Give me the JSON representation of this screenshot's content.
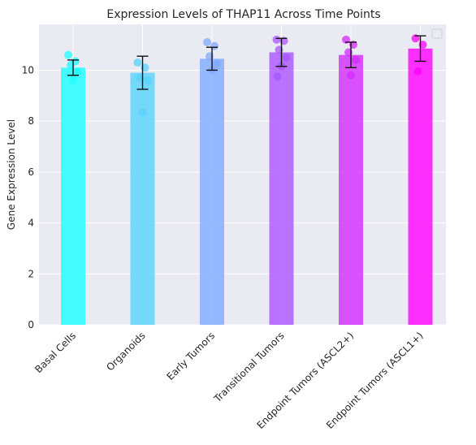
{
  "chart_data": {
    "type": "bar",
    "title": "Expression Levels of THAP11 Across Time Points",
    "xlabel": "",
    "ylabel": "Gene Expression Level",
    "ylim": [
      0,
      11.8
    ],
    "yticks": [
      0,
      2,
      4,
      6,
      8,
      10
    ],
    "grid": true,
    "legend": "top-right (empty)",
    "categories": [
      "Basal Cells",
      "Organoids",
      "Early Tumors",
      "Transitional Tumors",
      "Endpoint Tumors (ASCL2+)",
      "Endpoint Tumors (ASCL1+)"
    ],
    "values": [
      10.1,
      9.9,
      10.45,
      10.7,
      10.6,
      10.85
    ],
    "errors": [
      0.3,
      0.65,
      0.45,
      0.55,
      0.5,
      0.5
    ],
    "colors": [
      "#1affff",
      "#55d3fa",
      "#80aaff",
      "#aa55ff",
      "#d42bff",
      "#ff00ff"
    ],
    "points": [
      [
        10.6,
        10.35,
        10.2,
        9.95,
        9.6
      ],
      [
        10.3,
        10.1,
        9.7,
        9.6,
        8.35
      ],
      [
        11.1,
        10.95,
        10.55,
        10.25,
        10.0
      ],
      [
        11.2,
        11.15,
        10.8,
        10.5,
        10.15,
        9.75
      ],
      [
        11.2,
        11.0,
        10.7,
        10.4,
        9.8
      ],
      [
        11.25,
        11.0,
        9.95
      ]
    ]
  }
}
